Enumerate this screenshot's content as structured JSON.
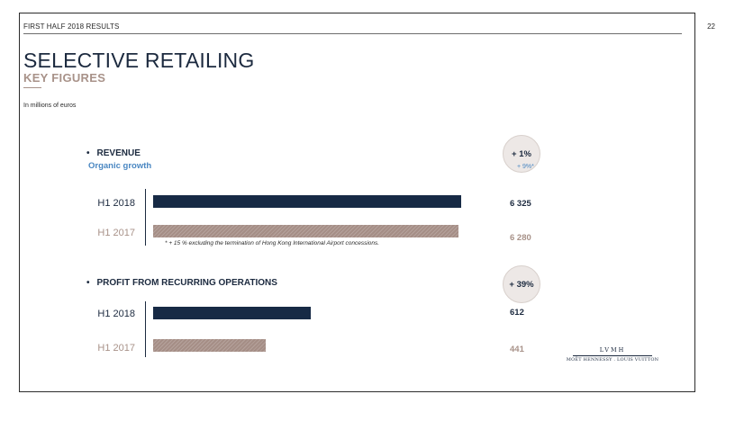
{
  "header": {
    "section": "FIRST HALF 2018 RESULTS",
    "page_number": "22"
  },
  "title": "SELECTIVE RETAILING",
  "subtitle": "KEY FIGURES",
  "units_note": "In millions of euros",
  "colors": {
    "navy": "#172a45",
    "taupe": "#a58e86",
    "blue": "#4a87c2"
  },
  "footnote": "* + 15 % excluding the termination of Hong Kong International Airport concessions.",
  "logo": {
    "top": "LVMH",
    "bottom": "MOËT HENNESSY . LOUIS VUITTON"
  },
  "chart_data": [
    {
      "type": "bar",
      "title": "REVENUE",
      "change_badge": "+ 1%",
      "organic_growth_label": "Organic growth",
      "organic_growth_value": "+ 9%*",
      "categories": [
        "H1 2018",
        "H1 2017"
      ],
      "values": [
        6325,
        6280
      ],
      "value_labels": [
        "6 325",
        "6 280"
      ]
    },
    {
      "type": "bar",
      "title": "PROFIT FROM RECURRING OPERATIONS",
      "change_badge": "+ 39%",
      "categories": [
        "H1 2018",
        "H1 2017"
      ],
      "values": [
        612,
        441
      ],
      "value_labels": [
        "612",
        "441"
      ]
    }
  ]
}
